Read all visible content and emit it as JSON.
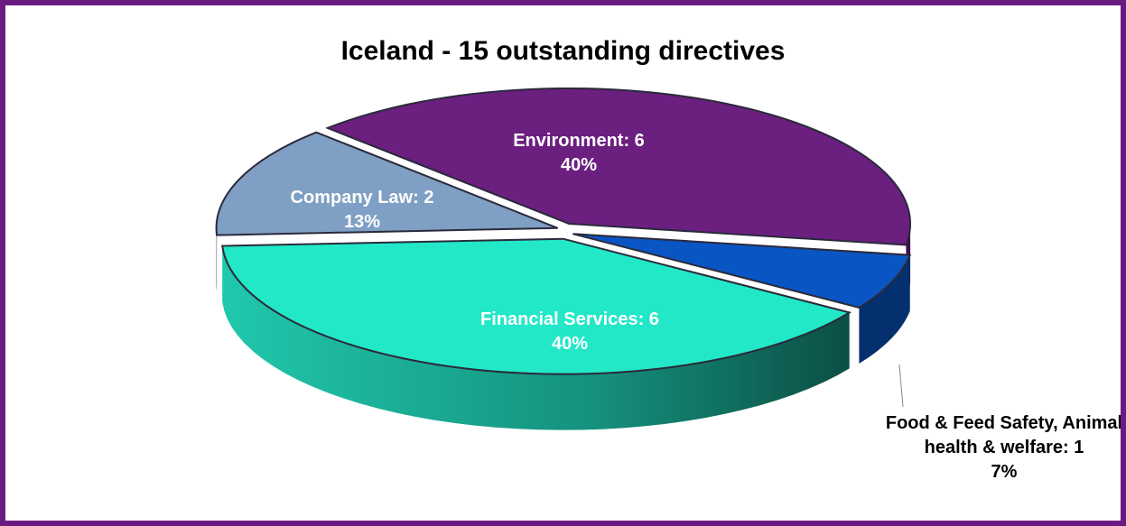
{
  "chart_data": {
    "type": "pie3d",
    "title": "Iceland -  15 outstanding directives",
    "labels": [
      "Environment: 6",
      "Food & Feed Safety, Animal health & welfare: 1",
      "Financial Services: 6",
      "Company Law: 2"
    ],
    "values": [
      6,
      1,
      6,
      2
    ],
    "percent_labels": [
      "40%",
      "7%",
      "40%",
      "13%"
    ],
    "colors": [
      "#6b1f7f",
      "#0a55c4",
      "#22e8c8",
      "#7f9fc4"
    ],
    "side_colors": [
      "#3f0f4c",
      "#05306f",
      "#138a76",
      "#3c4d63"
    ]
  }
}
